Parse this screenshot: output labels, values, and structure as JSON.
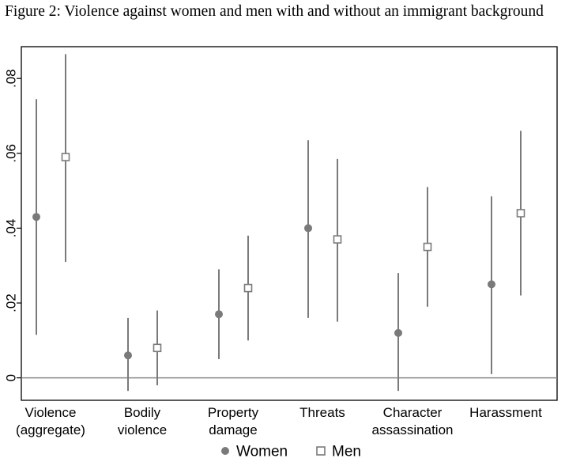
{
  "caption": "Figure 2: Violence against women and men with and without an immigrant background",
  "chart_data": {
    "type": "scatter",
    "subtype": "point estimates with confidence intervals",
    "title": "",
    "xlabel": "",
    "ylabel": "",
    "ylim": [
      -0.006,
      0.0885
    ],
    "y_ticks": [
      0,
      0.02,
      0.04,
      0.06,
      0.08
    ],
    "y_tick_labels": [
      "0",
      ".02",
      ".04",
      ".06",
      ".08"
    ],
    "reference_line": 0,
    "grid": false,
    "legend_position": "bottom",
    "categories": [
      [
        "Violence",
        "(aggregate)"
      ],
      [
        "Bodily",
        "violence"
      ],
      [
        "Property",
        "damage"
      ],
      [
        "Threats"
      ],
      [
        "Character",
        "assassination"
      ],
      [
        "Harassment"
      ]
    ],
    "series": [
      {
        "name": "Women",
        "marker": "filled-circle",
        "color": "#7a7a7a",
        "values": [
          0.043,
          0.006,
          0.017,
          0.04,
          0.012,
          0.025
        ],
        "ci_low": [
          0.0115,
          -0.0035,
          0.005,
          0.016,
          -0.0035,
          0.001
        ],
        "ci_high": [
          0.0745,
          0.016,
          0.029,
          0.0635,
          0.028,
          0.0485
        ]
      },
      {
        "name": "Men",
        "marker": "hollow-square",
        "color": "#7a7a7a",
        "values": [
          0.059,
          0.008,
          0.024,
          0.037,
          0.035,
          0.044
        ],
        "ci_low": [
          0.031,
          -0.002,
          0.01,
          0.015,
          0.019,
          0.022
        ],
        "ci_high": [
          0.0865,
          0.018,
          0.038,
          0.0585,
          0.051,
          0.066
        ]
      }
    ]
  }
}
